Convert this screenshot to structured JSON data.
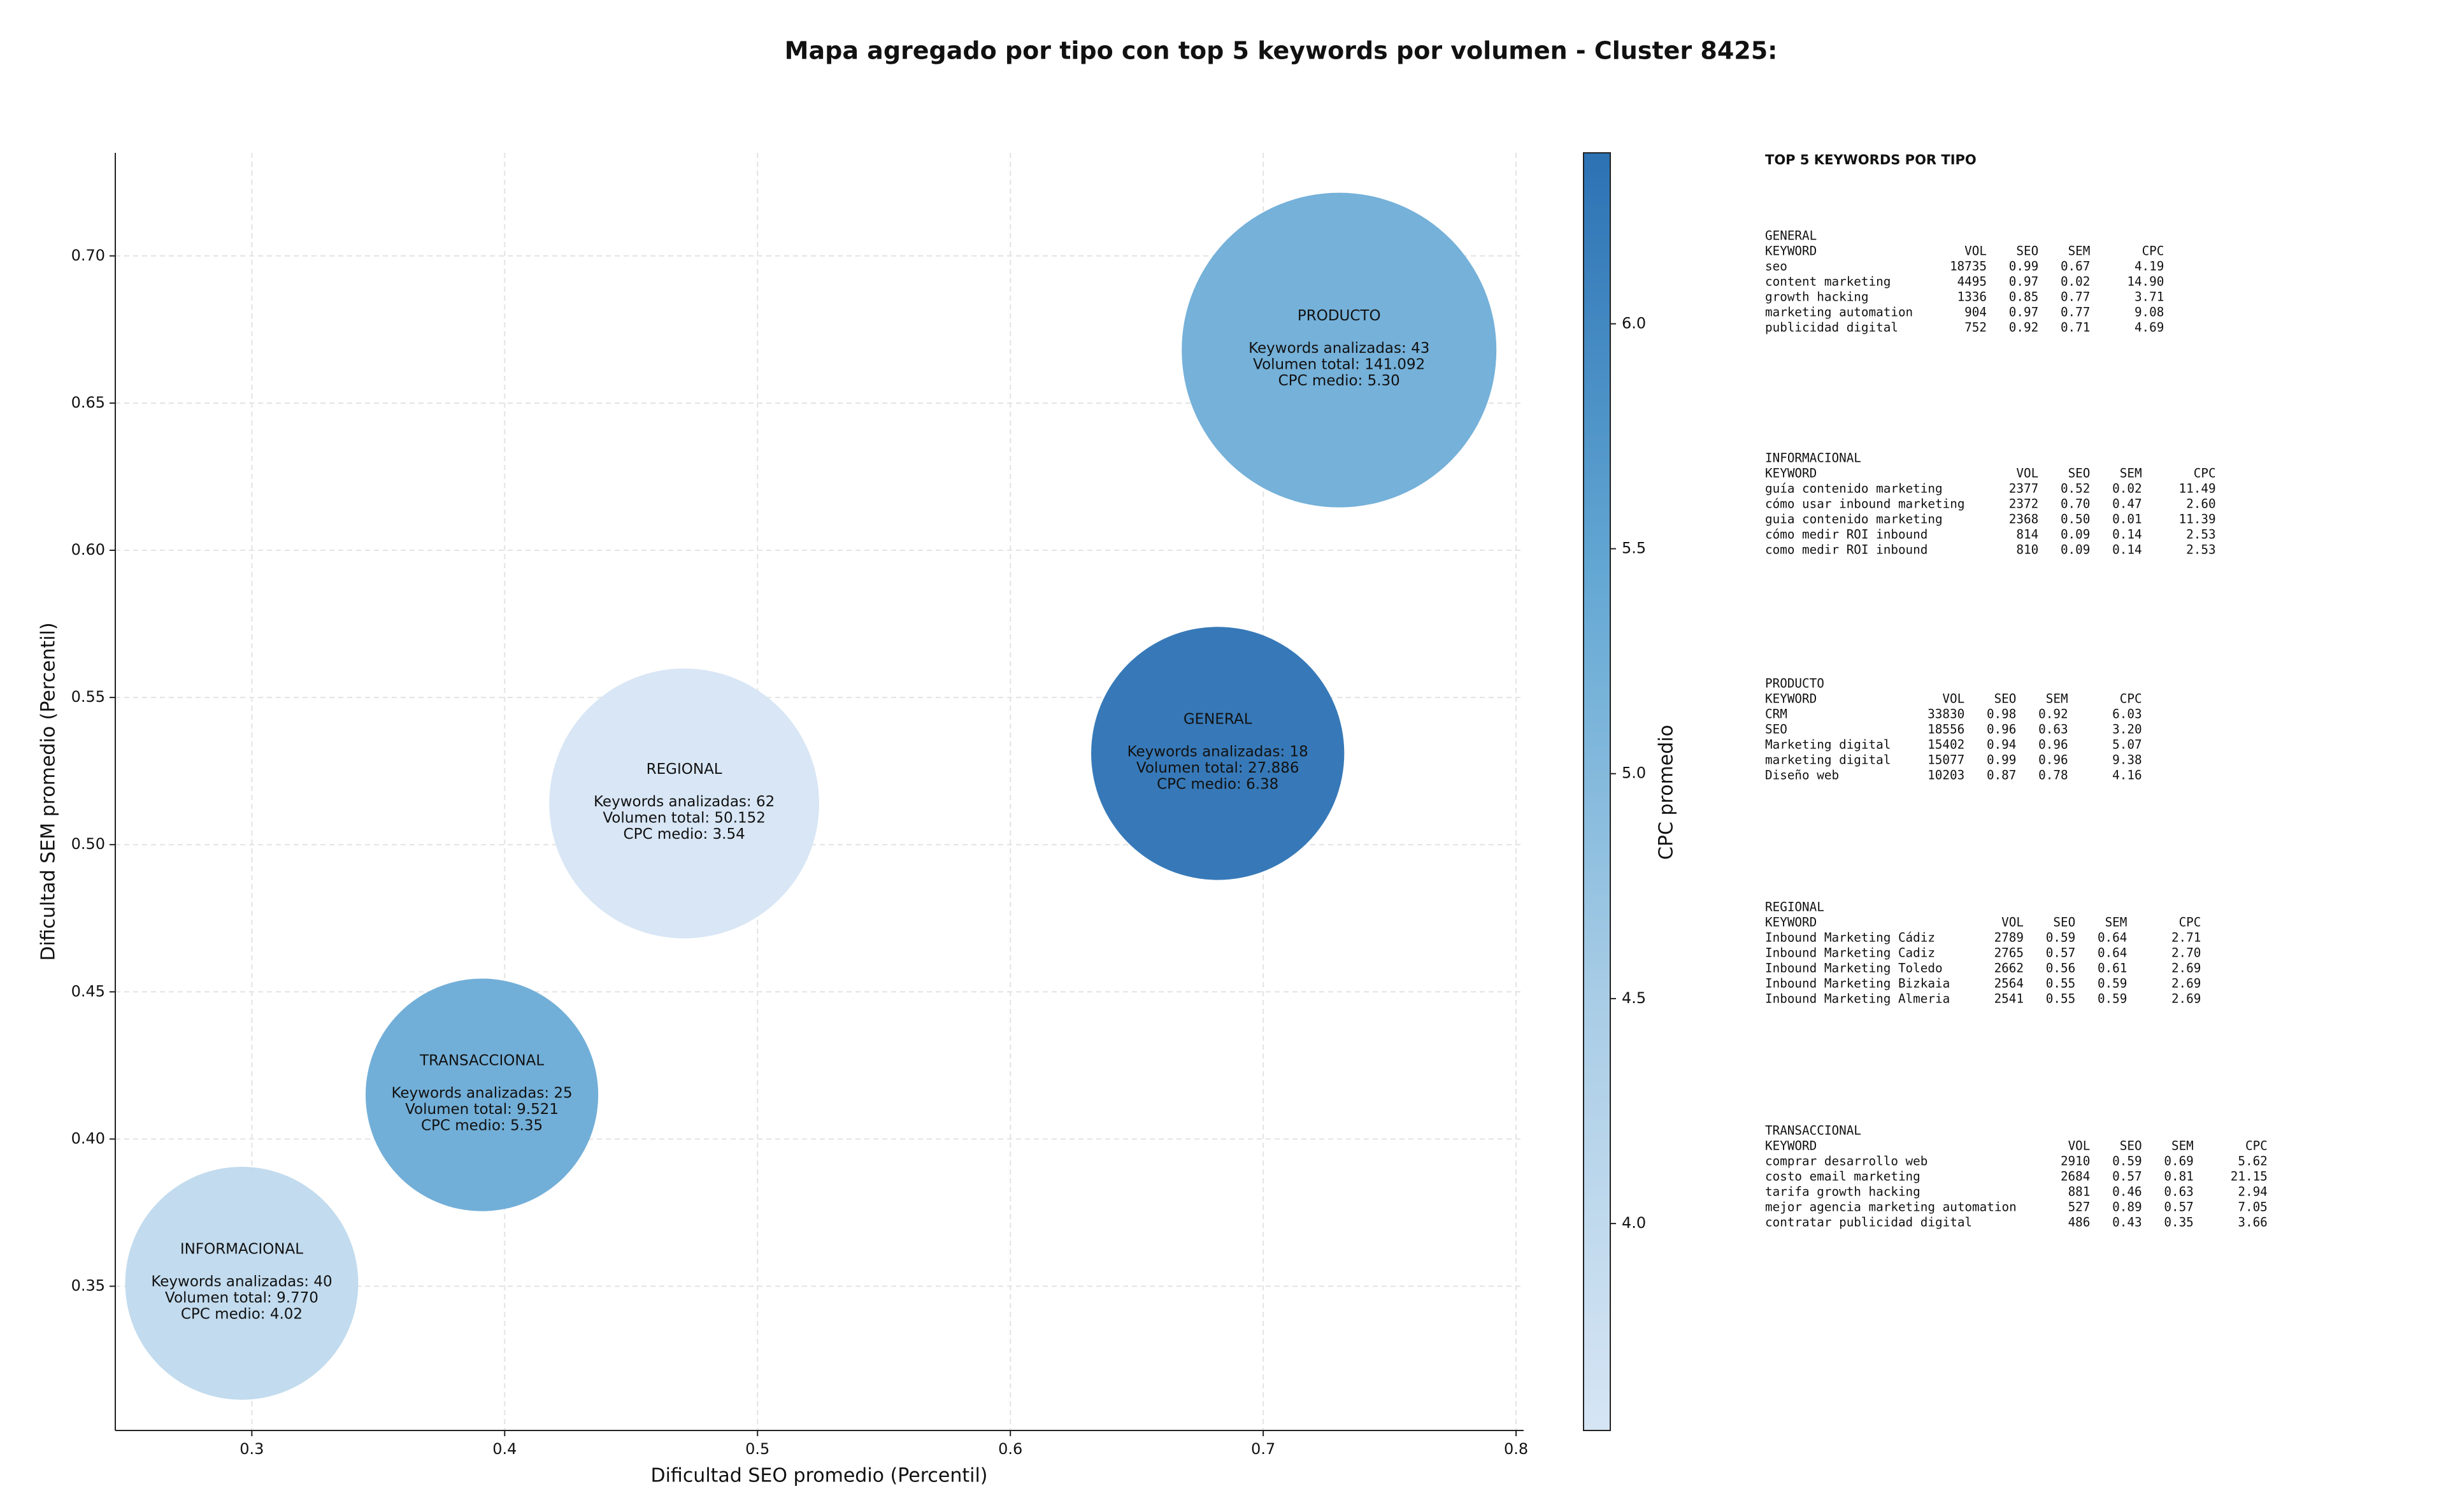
{
  "chart_data": {
    "type": "bubble",
    "title": "Mapa agregado por tipo con top 5 keywords por volumen - Cluster 8425:",
    "x_label": "Dificultad SEO promedio (Percentil)",
    "y_label": "Dificultad SEM promedio (Percentil)",
    "colorbar_label": "CPC promedio",
    "categories": [
      "PRODUCTO",
      "GENERAL",
      "REGIONAL",
      "TRANSACCIONAL",
      "INFORMACIONAL"
    ],
    "x": [
      0.73,
      0.682,
      0.471,
      0.391,
      0.296
    ],
    "values": [
      0.668,
      0.531,
      0.514,
      0.415,
      0.351
    ],
    "keywords": [
      43,
      18,
      62,
      25,
      40
    ],
    "sizes": [
      141092,
      27886,
      50152,
      9521,
      9770
    ],
    "cpc": [
      5.3,
      6.38,
      3.54,
      5.35,
      4.02
    ],
    "annotations": [
      [
        "Keywords analizadas: 43",
        "Volumen total: 141.092",
        "CPC medio: 5.30"
      ],
      [
        "Keywords analizadas: 18",
        "Volumen total: 27.886",
        "CPC medio: 6.38"
      ],
      [
        "Keywords analizadas: 62",
        "Volumen total: 50.152",
        "CPC medio: 3.54"
      ],
      [
        "Keywords analizadas: 25",
        "Volumen total: 9.521",
        "CPC medio: 5.35"
      ],
      [
        "Keywords analizadas: 40",
        "Volumen total: 9.770",
        "CPC medio: 4.02"
      ]
    ],
    "xlim": [
      0.246,
      0.803
    ],
    "ylim": [
      0.301,
      0.735
    ],
    "xticks": [
      0.3,
      0.4,
      0.5,
      0.6,
      0.7,
      0.8
    ],
    "yticks": [
      {
        "value": 0.35,
        "label": "0.35"
      },
      {
        "value": 0.4,
        "label": "0.40"
      },
      {
        "value": 0.45,
        "label": "0.45"
      },
      {
        "value": 0.5,
        "label": "0.50"
      },
      {
        "value": 0.55,
        "label": "0.55"
      },
      {
        "value": 0.6,
        "label": "0.60"
      },
      {
        "value": 0.65,
        "label": "0.65"
      },
      {
        "value": 0.7,
        "label": "0.70"
      }
    ],
    "clim": [
      3.54,
      6.38
    ],
    "cticks": [
      {
        "value": 4,
        "label": "4.0"
      },
      {
        "value": 4.5,
        "label": "4.5"
      },
      {
        "value": 5,
        "label": "5.0"
      },
      {
        "value": 5.5,
        "label": "5.5"
      },
      {
        "value": 6,
        "label": "6.0"
      }
    ],
    "colormap": [
      "#d6e5f4",
      "#a9cde6",
      "#64a8d4",
      "#2c72b4"
    ],
    "grid": true
  },
  "side_panel": {
    "title": "TOP 5 KEYWORDS POR TIPO",
    "groups": [
      {
        "name": "GENERAL",
        "columns": [
          "KEYWORD",
          "VOL",
          "SEO",
          "SEM",
          "CPC"
        ],
        "rows": [
          [
            "seo",
            "18735",
            "0.99",
            "0.67",
            "4.19"
          ],
          [
            "content marketing",
            "4495",
            "0.97",
            "0.02",
            "14.90"
          ],
          [
            "growth hacking",
            "1336",
            "0.85",
            "0.77",
            "3.71"
          ],
          [
            "marketing automation",
            "904",
            "0.97",
            "0.77",
            "9.08"
          ],
          [
            "publicidad digital",
            "752",
            "0.92",
            "0.71",
            "4.69"
          ]
        ]
      },
      {
        "name": "INFORMACIONAL",
        "columns": [
          "KEYWORD",
          "VOL",
          "SEO",
          "SEM",
          "CPC"
        ],
        "rows": [
          [
            "guía contenido marketing",
            "2377",
            "0.52",
            "0.02",
            "11.49"
          ],
          [
            "cómo usar inbound marketing",
            "2372",
            "0.70",
            "0.47",
            "2.60"
          ],
          [
            "guia contenido marketing",
            "2368",
            "0.50",
            "0.01",
            "11.39"
          ],
          [
            "cómo medir ROI inbound",
            "814",
            "0.09",
            "0.14",
            "2.53"
          ],
          [
            "como medir ROI inbound",
            "810",
            "0.09",
            "0.14",
            "2.53"
          ]
        ]
      },
      {
        "name": "PRODUCTO",
        "columns": [
          "KEYWORD",
          "VOL",
          "SEO",
          "SEM",
          "CPC"
        ],
        "rows": [
          [
            "CRM",
            "33830",
            "0.98",
            "0.92",
            "6.03"
          ],
          [
            "SEO",
            "18556",
            "0.96",
            "0.63",
            "3.20"
          ],
          [
            "Marketing digital",
            "15402",
            "0.94",
            "0.96",
            "5.07"
          ],
          [
            "marketing digital",
            "15077",
            "0.99",
            "0.96",
            "9.38"
          ],
          [
            "Diseño web",
            "10203",
            "0.87",
            "0.78",
            "4.16"
          ]
        ]
      },
      {
        "name": "REGIONAL",
        "columns": [
          "KEYWORD",
          "VOL",
          "SEO",
          "SEM",
          "CPC"
        ],
        "rows": [
          [
            "Inbound Marketing Cádiz",
            "2789",
            "0.59",
            "0.64",
            "2.71"
          ],
          [
            "Inbound Marketing Cadiz",
            "2765",
            "0.57",
            "0.64",
            "2.70"
          ],
          [
            "Inbound Marketing Toledo",
            "2662",
            "0.56",
            "0.61",
            "2.69"
          ],
          [
            "Inbound Marketing Bizkaia",
            "2564",
            "0.55",
            "0.59",
            "2.69"
          ],
          [
            "Inbound Marketing Almeria",
            "2541",
            "0.55",
            "0.59",
            "2.69"
          ]
        ]
      },
      {
        "name": "TRANSACCIONAL",
        "columns": [
          "KEYWORD",
          "VOL",
          "SEO",
          "SEM",
          "CPC"
        ],
        "rows": [
          [
            "comprar desarrollo web",
            "2910",
            "0.59",
            "0.69",
            "5.62"
          ],
          [
            "costo email marketing",
            "2684",
            "0.57",
            "0.81",
            "21.15"
          ],
          [
            "tarifa growth hacking",
            "881",
            "0.46",
            "0.63",
            "2.94"
          ],
          [
            "mejor agencia marketing automation",
            "527",
            "0.89",
            "0.57",
            "7.05"
          ],
          [
            "contratar publicidad digital",
            "486",
            "0.43",
            "0.35",
            "3.66"
          ]
        ]
      }
    ]
  }
}
